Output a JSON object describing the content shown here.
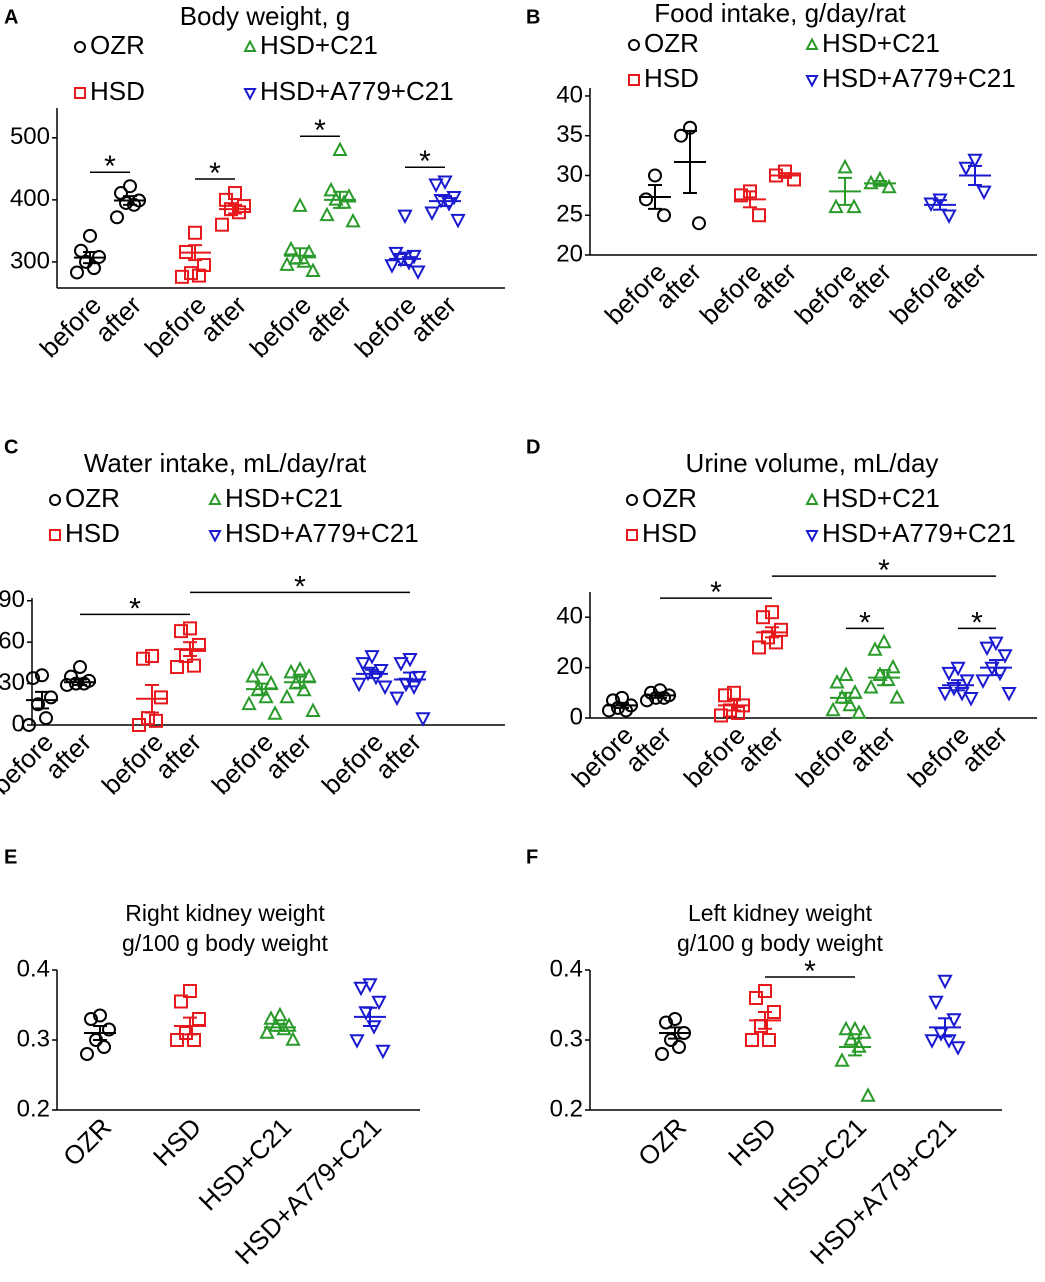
{
  "chart_data": [
    {
      "type": "dot",
      "panel": "A",
      "title": "Body weight, g",
      "legend": true,
      "categories": [
        "before",
        "after",
        "before",
        "after",
        "before",
        "after",
        "before",
        "after"
      ],
      "ylim": [
        258,
        548
      ],
      "yticks": [
        300,
        400,
        500
      ],
      "series": [
        {
          "name": "OZR",
          "color": "#000000",
          "marker": "circle",
          "groups": [
            {
              "values": [
                342,
                318,
                308,
                300,
                290,
                283
              ],
              "mean": 307,
              "sem": 9
            },
            {
              "values": [
                422,
                411,
                399,
                395,
                392,
                372
              ],
              "mean": 399,
              "sem": 7
            }
          ]
        },
        {
          "name": "HSD",
          "color": "#e8191d",
          "marker": "square",
          "groups": [
            {
              "values": [
                347,
                316,
                295,
                282,
                278,
                276
              ],
              "mean": 315,
              "sem": 12
            },
            {
              "values": [
                411,
                400,
                390,
                385,
                380,
                360
              ],
              "mean": 385,
              "sem": 7
            }
          ]
        },
        {
          "name": "HSD+C21",
          "color": "#2a9a2a",
          "marker": "triangle-up",
          "groups": [
            {
              "values": [
                390,
                320,
                315,
                305,
                300,
                295,
                285
              ],
              "mean": 310,
              "sem": 12
            },
            {
              "values": [
                480,
                415,
                405,
                400,
                395,
                375,
                365
              ],
              "mean": 400,
              "sem": 13
            }
          ]
        },
        {
          "name": "HSD+A779+C21",
          "color": "#1a1ad0",
          "marker": "triangle-down",
          "groups": [
            {
              "values": [
                375,
                315,
                310,
                305,
                300,
                295,
                285
              ],
              "mean": 305,
              "sem": 10
            },
            {
              "values": [
                430,
                425,
                405,
                400,
                395,
                380,
                368
              ],
              "mean": 398,
              "sem": 8
            }
          ]
        }
      ],
      "significance": [
        {
          "from": 0,
          "to": 1,
          "label": "*"
        },
        {
          "from": 2,
          "to": 3,
          "label": "*"
        },
        {
          "from": 4,
          "to": 5,
          "label": "*"
        },
        {
          "from": 6,
          "to": 7,
          "label": "*"
        }
      ]
    },
    {
      "type": "dot",
      "panel": "B",
      "title": "Food intake, g/day/rat",
      "legend": true,
      "categories": [
        "before",
        "after",
        "before",
        "after",
        "before",
        "after",
        "before",
        "after"
      ],
      "ylim": [
        20,
        41
      ],
      "yticks": [
        20,
        25,
        30,
        35,
        40
      ],
      "series": [
        {
          "name": "OZR",
          "color": "#000000",
          "marker": "circle",
          "groups": [
            {
              "values": [
                30,
                27,
                25
              ],
              "mean": 27.3,
              "sem": 1.5
            },
            {
              "values": [
                36,
                35,
                24
              ],
              "mean": 31.7,
              "sem": 3.9
            }
          ]
        },
        {
          "name": "HSD",
          "color": "#e8191d",
          "marker": "square",
          "groups": [
            {
              "values": [
                28,
                27.5,
                25
              ],
              "mean": 27,
              "sem": 1
            },
            {
              "values": [
                30.5,
                30,
                29.5
              ],
              "mean": 30,
              "sem": 0.3
            }
          ]
        },
        {
          "name": "HSD+C21",
          "color": "#2a9a2a",
          "marker": "triangle-up",
          "groups": [
            {
              "values": [
                31,
                26,
                26
              ],
              "mean": 28,
              "sem": 1.7
            },
            {
              "values": [
                29.5,
                29,
                28.5
              ],
              "mean": 29,
              "sem": 0.3
            }
          ]
        },
        {
          "name": "HSD+A779+C21",
          "color": "#1a1ad0",
          "marker": "triangle-down",
          "groups": [
            {
              "values": [
                27,
                26.5,
                25
              ],
              "mean": 26.3,
              "sem": 0.6
            },
            {
              "values": [
                32,
                31,
                28
              ],
              "mean": 30,
              "sem": 1.2
            }
          ]
        }
      ],
      "significance": []
    },
    {
      "type": "dot",
      "panel": "C",
      "title": "Water intake, mL/day/rat",
      "legend": true,
      "categories": [
        "before",
        "after",
        "before",
        "after",
        "before",
        "after",
        "before",
        "after"
      ],
      "ylim": [
        0,
        92
      ],
      "yticks": [
        0,
        30,
        60,
        90
      ],
      "series": [
        {
          "name": "OZR",
          "color": "#000000",
          "marker": "circle",
          "groups": [
            {
              "values": [
                36,
                34,
                20,
                15,
                5,
                0
              ],
              "mean": 18,
              "sem": 6
            },
            {
              "values": [
                42,
                35,
                32,
                30,
                30,
                29
              ],
              "mean": 31,
              "sem": 2
            }
          ]
        },
        {
          "name": "HSD",
          "color": "#e8191d",
          "marker": "square",
          "groups": [
            {
              "values": [
                50,
                48,
                20,
                5,
                3,
                0
              ],
              "mean": 19,
              "sem": 10
            },
            {
              "values": [
                70,
                68,
                58,
                50,
                43,
                42
              ],
              "mean": 55,
              "sem": 5
            }
          ]
        },
        {
          "name": "HSD+C21",
          "color": "#2a9a2a",
          "marker": "triangle-up",
          "groups": [
            {
              "values": [
                40,
                35,
                30,
                25,
                20,
                15,
                8
              ],
              "mean": 26,
              "sem": 4
            },
            {
              "values": [
                40,
                38,
                35,
                30,
                25,
                20,
                10
              ],
              "mean": 31,
              "sem": 4
            }
          ]
        },
        {
          "name": "HSD+A779+C21",
          "color": "#1a1ad0",
          "marker": "triangle-down",
          "groups": [
            {
              "values": [
                50,
                45,
                40,
                38,
                35,
                30,
                28
              ],
              "mean": 37,
              "sem": 3
            },
            {
              "values": [
                48,
                45,
                35,
                30,
                28,
                20,
                5
              ],
              "mean": 33,
              "sem": 5
            }
          ]
        }
      ],
      "significance": [
        {
          "from": 1,
          "to": 3,
          "label": "*"
        },
        {
          "from": 3,
          "to": 7,
          "label": "*"
        }
      ]
    },
    {
      "type": "dot",
      "panel": "D",
      "title": "Urine volume, mL/day",
      "legend": true,
      "categories": [
        "before",
        "after",
        "before",
        "after",
        "before",
        "after",
        "before",
        "after"
      ],
      "ylim": [
        0,
        50
      ],
      "yticks": [
        0,
        20,
        40
      ],
      "series": [
        {
          "name": "OZR",
          "color": "#000000",
          "marker": "circle",
          "groups": [
            {
              "values": [
                8,
                7,
                5,
                4,
                3,
                3
              ],
              "mean": 5,
              "sem": 1
            },
            {
              "values": [
                11,
                10,
                9,
                8,
                8,
                7
              ],
              "mean": 9,
              "sem": 1
            }
          ]
        },
        {
          "name": "HSD",
          "color": "#e8191d",
          "marker": "square",
          "groups": [
            {
              "values": [
                10,
                9,
                5,
                3,
                2,
                1
              ],
              "mean": 5,
              "sem": 2
            },
            {
              "values": [
                42,
                40,
                35,
                32,
                30,
                28
              ],
              "mean": 34,
              "sem": 2
            }
          ]
        },
        {
          "name": "HSD+C21",
          "color": "#2a9a2a",
          "marker": "triangle-up",
          "groups": [
            {
              "values": [
                17,
                14,
                10,
                8,
                5,
                3,
                2
              ],
              "mean": 8,
              "sem": 2
            },
            {
              "values": [
                30,
                27,
                20,
                17,
                15,
                12,
                8
              ],
              "mean": 16,
              "sem": 3
            }
          ]
        },
        {
          "name": "HSD+A779+C21",
          "color": "#1a1ad0",
          "marker": "triangle-down",
          "groups": [
            {
              "values": [
                20,
                18,
                15,
                12,
                10,
                10,
                8
              ],
              "mean": 13,
              "sem": 2
            },
            {
              "values": [
                30,
                28,
                25,
                20,
                18,
                15,
                10
              ],
              "mean": 20,
              "sem": 3
            }
          ]
        }
      ],
      "significance": [
        {
          "from": 1,
          "to": 3,
          "label": "*"
        },
        {
          "from": 4,
          "to": 5,
          "label": "*"
        },
        {
          "from": 6,
          "to": 7,
          "label": "*"
        },
        {
          "from": 3,
          "to": 7,
          "label": "*"
        }
      ]
    },
    {
      "type": "dot",
      "panel": "E",
      "title": "Right kidney weight",
      "subtitle": "g/100 g body weight",
      "legend": false,
      "ylim": [
        0.2,
        0.4
      ],
      "yticks": [
        0.2,
        0.3,
        0.4
      ],
      "series": [
        {
          "name": "OZR",
          "color": "#000000",
          "marker": "circle",
          "groups": [
            {
              "values": [
                0.335,
                0.33,
                0.315,
                0.3,
                0.29,
                0.28
              ],
              "mean": 0.31,
              "sem": 0.01
            }
          ]
        },
        {
          "name": "HSD",
          "color": "#e8191d",
          "marker": "square",
          "groups": [
            {
              "values": [
                0.37,
                0.355,
                0.33,
                0.31,
                0.3,
                0.3
              ],
              "mean": 0.32,
              "sem": 0.012
            }
          ]
        },
        {
          "name": "HSD+C21",
          "color": "#2a9a2a",
          "marker": "triangle-up",
          "groups": [
            {
              "values": [
                0.335,
                0.33,
                0.32,
                0.32,
                0.315,
                0.31,
                0.3
              ],
              "mean": 0.318,
              "sem": 0.005
            }
          ]
        },
        {
          "name": "HSD+A779+C21",
          "color": "#1a1ad0",
          "marker": "triangle-down",
          "groups": [
            {
              "values": [
                0.38,
                0.375,
                0.355,
                0.34,
                0.32,
                0.3,
                0.285
              ],
              "mean": 0.333,
              "sem": 0.013
            }
          ]
        }
      ],
      "significance": []
    },
    {
      "type": "dot",
      "panel": "F",
      "title": "Left kidney weight",
      "subtitle": "g/100 g body weight",
      "legend": false,
      "ylim": [
        0.2,
        0.4
      ],
      "yticks": [
        0.2,
        0.3,
        0.4
      ],
      "series": [
        {
          "name": "OZR",
          "color": "#000000",
          "marker": "circle",
          "groups": [
            {
              "values": [
                0.33,
                0.325,
                0.31,
                0.3,
                0.29,
                0.28
              ],
              "mean": 0.31,
              "sem": 0.008
            }
          ]
        },
        {
          "name": "HSD",
          "color": "#e8191d",
          "marker": "square",
          "groups": [
            {
              "values": [
                0.37,
                0.36,
                0.34,
                0.32,
                0.3,
                0.3
              ],
              "mean": 0.328,
              "sem": 0.012
            }
          ]
        },
        {
          "name": "HSD+C21",
          "color": "#2a9a2a",
          "marker": "triangle-up",
          "groups": [
            {
              "values": [
                0.315,
                0.315,
                0.31,
                0.3,
                0.29,
                0.27,
                0.22
              ],
              "mean": 0.29,
              "sem": 0.012
            }
          ]
        },
        {
          "name": "HSD+A779+C21",
          "color": "#1a1ad0",
          "marker": "triangle-down",
          "groups": [
            {
              "values": [
                0.385,
                0.355,
                0.33,
                0.31,
                0.3,
                0.3,
                0.29
              ],
              "mean": 0.318,
              "sem": 0.013
            }
          ]
        }
      ],
      "significance": [
        {
          "from": 1,
          "to": 2,
          "label": "*"
        }
      ]
    }
  ]
}
